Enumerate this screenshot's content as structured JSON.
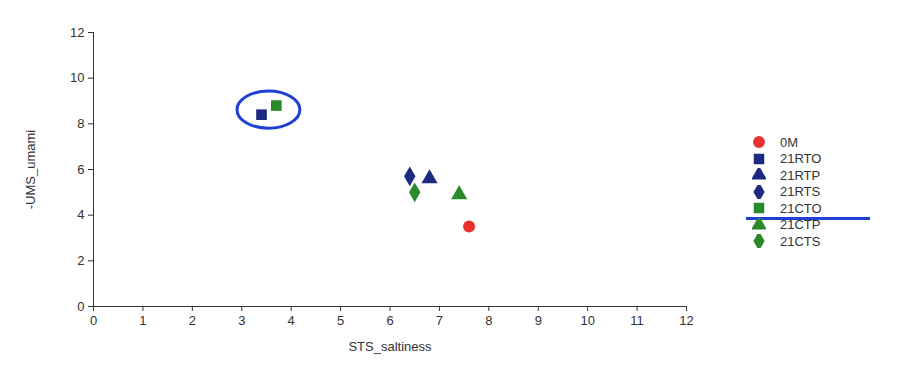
{
  "chart_data": {
    "type": "scatter",
    "x_label": "STS_saltiness",
    "y_label": "-UMS_umami",
    "xlim": [
      0,
      12
    ],
    "xticks": [
      0,
      1,
      2,
      3,
      4,
      5,
      6,
      7,
      8,
      9,
      10,
      11,
      12
    ],
    "ylim": [
      0,
      12
    ],
    "yticks": [
      0,
      2,
      4,
      6,
      8,
      10,
      12
    ],
    "legend": "right",
    "series": [
      {
        "name": "0M",
        "color": "#e8312f",
        "marker": "circle",
        "x": [
          7.6
        ],
        "y": [
          3.5
        ]
      },
      {
        "name": "21RTO",
        "color": "#1c2a80",
        "marker": "square",
        "x": [
          3.4
        ],
        "y": [
          8.4
        ]
      },
      {
        "name": "21RTP",
        "color": "#1c2a80",
        "marker": "triangle",
        "x": [
          6.8
        ],
        "y": [
          5.6
        ]
      },
      {
        "name": "21RTS",
        "color": "#1c2a80",
        "marker": "diamond",
        "x": [
          6.4
        ],
        "y": [
          5.7
        ]
      },
      {
        "name": "21CTO",
        "color": "#2a8a2a",
        "marker": "square",
        "x": [
          3.7
        ],
        "y": [
          8.8
        ]
      },
      {
        "name": "21CTP",
        "color": "#2a8a2a",
        "marker": "triangle",
        "x": [
          7.4
        ],
        "y": [
          4.9
        ]
      },
      {
        "name": "21CTS",
        "color": "#2a8a2a",
        "marker": "diamond",
        "x": [
          6.5
        ],
        "y": [
          5.0
        ]
      }
    ]
  }
}
